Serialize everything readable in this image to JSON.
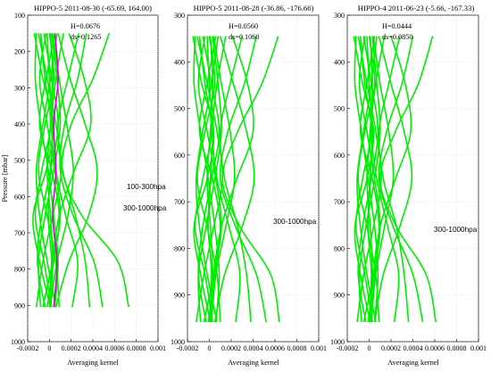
{
  "colors": {
    "curve": "#00ee00",
    "curve_secondary": "#dd00dd",
    "annotation": "#ff0000",
    "label_secondary": "#dd00dd",
    "label_primary": "#00dd00",
    "grid": "#d8d8d8",
    "axis": "#000000"
  },
  "chart_data": [
    {
      "type": "line",
      "title": "HIPPO-5 2011-08-30  (-65.69, 164.00)",
      "xlabel": "Averaging kernel",
      "ylabel": "Pressure [mbar]",
      "xlim": [
        -0.0002,
        0.001
      ],
      "ylim": [
        1000,
        100
      ],
      "xticks": [
        -0.0002,
        0,
        0.0002,
        0.0004,
        0.0006,
        0.0008,
        0.001
      ],
      "xtick_labels": [
        "-0.0002",
        "0",
        "0.0002",
        "0.0004",
        "0.0006",
        "0.0008",
        "0.001"
      ],
      "yticks": [
        100,
        200,
        300,
        400,
        500,
        600,
        700,
        800,
        900,
        1000
      ],
      "ytick_labels": [
        "100",
        "200",
        "300",
        "400",
        "500",
        "600",
        "700",
        "800",
        "900",
        "1000"
      ],
      "grid": true,
      "annotations": [
        "H=0.0676",
        "ds=0.1265"
      ],
      "labels": [
        "100-300hpa",
        "300-1000hpa"
      ],
      "pressure_range": [
        150,
        905
      ],
      "series": [
        {
          "color": "#00ee00",
          "x": [
            0.00055,
            0.0004,
            0.0002,
            0.00012,
            0.0003,
            0.00063,
            0.00073
          ]
        },
        {
          "color": "#00ee00",
          "x": [
            0.00034,
            0.00026,
            0.00014,
            0.0001,
            0.00022,
            0.00041,
            0.00049
          ]
        },
        {
          "color": "#00ee00",
          "x": [
            0.00018,
            0.00032,
            0.00038,
            0.00023,
            9e-05,
            3e-05,
            1e-05
          ]
        },
        {
          "color": "#00ee00",
          "x": [
            8e-05,
            0.00019,
            0.00033,
            0.00044,
            0.00036,
            0.00018,
            6e-05
          ]
        },
        {
          "color": "#00ee00",
          "x": [
            0.00027,
            0.00017,
            8e-05,
            0.00012,
            0.00024,
            0.00033,
            0.00037
          ]
        },
        {
          "color": "#00ee00",
          "x": [
            0.00013,
            6e-05,
            2e-05,
            6e-05,
            0.00015,
            0.00026,
            0.00021
          ]
        },
        {
          "color": "#00ee00",
          "x": [
            3e-05,
            9e-05,
            0.00016,
            0.00022,
            0.00017,
            7e-05,
            1e-05
          ]
        },
        {
          "color": "#00ee00",
          "x": [
            -8e-05,
            -4e-05,
            1e-05,
            -7e-05,
            -0.00013,
            -5e-05,
            2e-05
          ]
        },
        {
          "color": "#00ee00",
          "x": [
            -0.00014,
            -6e-05,
            4e-05,
            -3e-05,
            -0.00015,
            -9e-05,
            1e-05
          ]
        },
        {
          "color": "#00ee00",
          "x": [
            -5e-05,
            2e-05,
            8e-05,
            1e-05,
            -7e-05,
            -0.00011,
            -4e-05
          ]
        },
        {
          "color": "#00ee00",
          "x": [
            5e-05,
            -3e-05,
            -9e-05,
            2e-05,
            9e-05,
            4e-05,
            -2e-05
          ]
        },
        {
          "color": "#00ee00",
          "x": [
            -0.0001,
            -2e-05,
            6e-05,
            0.00011,
            3e-05,
            -6e-05,
            -0.00012
          ]
        },
        {
          "color": "#00ee00",
          "x": [
            0.0,
            4e-05,
            -4e-05,
            -0.0001,
            -2e-05,
            6e-05,
            9e-05
          ]
        },
        {
          "color": "#00ee00",
          "x": [
            -3e-05,
            -9e-05,
            -2e-05,
            5e-05,
            0.0001,
            3e-05,
            -6e-05
          ]
        },
        {
          "color": "#00ee00",
          "x": [
            2e-05,
            7e-05,
            0.0001,
            4e-05,
            -4e-05,
            -0.0001,
            -8e-05
          ]
        },
        {
          "color": "#00ee00",
          "x": [
            -0.00012,
            -0.00013,
            -8e-05,
            -1e-05,
            4e-05,
            8e-05,
            5e-05
          ]
        },
        {
          "color": "#00ee00",
          "x": [
            7e-05,
            1e-05,
            -6e-05,
            -0.00012,
            -9e-05,
            -2e-05,
            6e-05
          ]
        },
        {
          "color": "#00ee00",
          "x": [
            -2e-05,
            0.0,
            3e-05,
            1e-05,
            -1e-05,
            2e-05,
            0.0
          ]
        },
        {
          "color": "#00ee00",
          "x": [
            1e-05,
            3e-05,
            1e-05,
            -2e-05,
            1e-05,
            3e-05,
            1e-05
          ]
        },
        {
          "color": "#dd00dd",
          "x": [
            5e-05,
            8e-05,
            4e-05,
            6e-05,
            3e-05,
            7e-05,
            4e-05
          ]
        }
      ]
    },
    {
      "type": "line",
      "title": "HIPPO-5 2011-08-28  (-36.86, -176.66)",
      "xlabel": "Averaging kernel",
      "xlim": [
        -0.0002,
        0.001
      ],
      "ylim": [
        1000,
        300
      ],
      "xticks": [
        -0.0002,
        0,
        0.0002,
        0.0004,
        0.0006,
        0.0008,
        0.001
      ],
      "xtick_labels": [
        "-0.0002",
        "0",
        "0.0002",
        "0.0004",
        "0.0006",
        "0.0008",
        "0.001"
      ],
      "yticks": [
        300,
        400,
        500,
        600,
        700,
        800,
        900,
        1000
      ],
      "ytick_labels": [
        "300",
        "400",
        "500",
        "600",
        "700",
        "800",
        "900",
        "1000"
      ],
      "grid": true,
      "annotations": [
        "H=0.0560",
        "ds=0.1060"
      ],
      "labels": [
        "300-1000hpa"
      ],
      "pressure_range": [
        345,
        958
      ],
      "series": [
        {
          "color": "#00ee00",
          "x": [
            0.00063,
            0.00048,
            0.00026,
            0.00012,
            0.00028,
            0.00056,
            0.00064
          ]
        },
        {
          "color": "#00ee00",
          "x": [
            0.00043,
            0.00032,
            0.00017,
            0.0001,
            0.00024,
            0.00043,
            0.00052
          ]
        },
        {
          "color": "#00ee00",
          "x": [
            0.00021,
            0.00035,
            0.0004,
            0.00025,
            0.00011,
            4e-05,
            2e-05
          ]
        },
        {
          "color": "#00ee00",
          "x": [
            0.0001,
            0.00022,
            0.00034,
            0.00041,
            0.0003,
            0.00014,
            5e-05
          ]
        },
        {
          "color": "#00ee00",
          "x": [
            0.0003,
            0.00019,
            0.0001,
            0.00014,
            0.00026,
            0.00034,
            0.00038
          ]
        },
        {
          "color": "#00ee00",
          "x": [
            0.00015,
            7e-05,
            3e-05,
            7e-05,
            0.00018,
            0.00028,
            0.00024
          ]
        },
        {
          "color": "#00ee00",
          "x": [
            4e-05,
            0.00011,
            0.00019,
            0.00023,
            0.00015,
            6e-05,
            2e-05
          ]
        },
        {
          "color": "#00ee00",
          "x": [
            -9e-05,
            -4e-05,
            2e-05,
            -6e-05,
            -0.00013,
            -4e-05,
            3e-05
          ]
        },
        {
          "color": "#00ee00",
          "x": [
            -0.00015,
            -7e-05,
            4e-05,
            -2e-05,
            -0.00014,
            -8e-05,
            1e-05
          ]
        },
        {
          "color": "#00ee00",
          "x": [
            -6e-05,
            2e-05,
            9e-05,
            2e-05,
            -6e-05,
            -0.0001,
            -3e-05
          ]
        },
        {
          "color": "#00ee00",
          "x": [
            6e-05,
            -2e-05,
            -9e-05,
            3e-05,
            0.0001,
            5e-05,
            -1e-05
          ]
        },
        {
          "color": "#00ee00",
          "x": [
            -0.00011,
            -2e-05,
            7e-05,
            0.00012,
            4e-05,
            -5e-05,
            -0.00012
          ]
        },
        {
          "color": "#00ee00",
          "x": [
            0.0,
            5e-05,
            -4e-05,
            -0.00011,
            -2e-05,
            7e-05,
            0.0001
          ]
        },
        {
          "color": "#00ee00",
          "x": [
            -4e-05,
            -0.0001,
            -2e-05,
            6e-05,
            0.00011,
            4e-05,
            -5e-05
          ]
        },
        {
          "color": "#00ee00",
          "x": [
            3e-05,
            8e-05,
            0.00011,
            5e-05,
            -3e-05,
            -0.0001,
            -8e-05
          ]
        },
        {
          "color": "#00ee00",
          "x": [
            -0.00013,
            -0.00014,
            -8e-05,
            -1e-05,
            5e-05,
            9e-05,
            6e-05
          ]
        },
        {
          "color": "#00ee00",
          "x": [
            8e-05,
            2e-05,
            -6e-05,
            -0.00012,
            -9e-05,
            -2e-05,
            7e-05
          ]
        },
        {
          "color": "#00ee00",
          "x": [
            -2e-05,
            0.0,
            3e-05,
            1e-05,
            -1e-05,
            2e-05,
            0.0
          ]
        },
        {
          "color": "#00ee00",
          "x": [
            1e-05,
            3e-05,
            1e-05,
            -2e-05,
            1e-05,
            3e-05,
            1e-05
          ]
        }
      ]
    },
    {
      "type": "line",
      "title": "HIPPO-4 2011-06-23  (-5.66, -167.33)",
      "xlabel": "Averaging kernel",
      "xlim": [
        -0.0002,
        0.001
      ],
      "ylim": [
        1000,
        300
      ],
      "xticks": [
        -0.0002,
        0,
        0.0002,
        0.0004,
        0.0006,
        0.0008,
        0.001
      ],
      "xtick_labels": [
        "-0.0002",
        "0",
        "0.0002",
        "0.0004",
        "0.0006",
        "0.0008",
        "0.001"
      ],
      "yticks": [
        300,
        400,
        500,
        600,
        700,
        800,
        900,
        1000
      ],
      "ytick_labels": [
        "300",
        "400",
        "500",
        "600",
        "700",
        "800",
        "900",
        "1000"
      ],
      "grid": true,
      "annotations": [
        "H=0.0444",
        "ds=0.0850"
      ],
      "labels": [
        "300-1000hpa"
      ],
      "pressure_range": [
        345,
        958
      ],
      "series": [
        {
          "color": "#00ee00",
          "x": [
            0.00058,
            0.00045,
            0.00024,
            0.0001,
            0.00025,
            0.00052,
            0.00061
          ]
        },
        {
          "color": "#00ee00",
          "x": [
            0.0004,
            0.0003,
            0.00016,
            9e-05,
            0.00022,
            0.0004,
            0.00049
          ]
        },
        {
          "color": "#00ee00",
          "x": [
            0.0002,
            0.00033,
            0.00038,
            0.00024,
            0.0001,
            4e-05,
            2e-05
          ]
        },
        {
          "color": "#00ee00",
          "x": [
            9e-05,
            0.0002,
            0.00032,
            0.00039,
            0.00028,
            0.00013,
            5e-05
          ]
        },
        {
          "color": "#00ee00",
          "x": [
            0.00028,
            0.00018,
            9e-05,
            0.00013,
            0.00025,
            0.00032,
            0.00036
          ]
        },
        {
          "color": "#00ee00",
          "x": [
            0.00014,
            6e-05,
            2e-05,
            7e-05,
            0.00017,
            0.00027,
            0.00023
          ]
        },
        {
          "color": "#00ee00",
          "x": [
            4e-05,
            0.0001,
            0.00018,
            0.00022,
            0.00014,
            6e-05,
            2e-05
          ]
        },
        {
          "color": "#00ee00",
          "x": [
            -8e-05,
            -4e-05,
            2e-05,
            -6e-05,
            -0.00012,
            -4e-05,
            3e-05
          ]
        },
        {
          "color": "#00ee00",
          "x": [
            -0.00014,
            -6e-05,
            4e-05,
            -2e-05,
            -0.00013,
            -8e-05,
            1e-05
          ]
        },
        {
          "color": "#00ee00",
          "x": [
            -5e-05,
            2e-05,
            8e-05,
            2e-05,
            -6e-05,
            -0.0001,
            -3e-05
          ]
        },
        {
          "color": "#00ee00",
          "x": [
            5e-05,
            -2e-05,
            -8e-05,
            3e-05,
            9e-05,
            5e-05,
            -1e-05
          ]
        },
        {
          "color": "#00ee00",
          "x": [
            -0.0001,
            -2e-05,
            6e-05,
            0.00011,
            4e-05,
            -5e-05,
            -0.00011
          ]
        },
        {
          "color": "#00ee00",
          "x": [
            0.0,
            5e-05,
            -4e-05,
            -0.0001,
            -2e-05,
            6e-05,
            9e-05
          ]
        },
        {
          "color": "#00ee00",
          "x": [
            -4e-05,
            -9e-05,
            -2e-05,
            5e-05,
            0.0001,
            4e-05,
            -5e-05
          ]
        },
        {
          "color": "#00ee00",
          "x": [
            3e-05,
            7e-05,
            0.0001,
            5e-05,
            -3e-05,
            -9e-05,
            -7e-05
          ]
        },
        {
          "color": "#00ee00",
          "x": [
            -0.00012,
            -0.00013,
            -7e-05,
            -1e-05,
            5e-05,
            8e-05,
            5e-05
          ]
        },
        {
          "color": "#00ee00",
          "x": [
            7e-05,
            2e-05,
            -5e-05,
            -0.00011,
            -8e-05,
            -2e-05,
            6e-05
          ]
        },
        {
          "color": "#00ee00",
          "x": [
            -2e-05,
            0.0,
            3e-05,
            1e-05,
            -1e-05,
            2e-05,
            0.0
          ]
        },
        {
          "color": "#00ee00",
          "x": [
            1e-05,
            3e-05,
            1e-05,
            -2e-05,
            1e-05,
            3e-05,
            1e-05
          ]
        }
      ]
    }
  ]
}
